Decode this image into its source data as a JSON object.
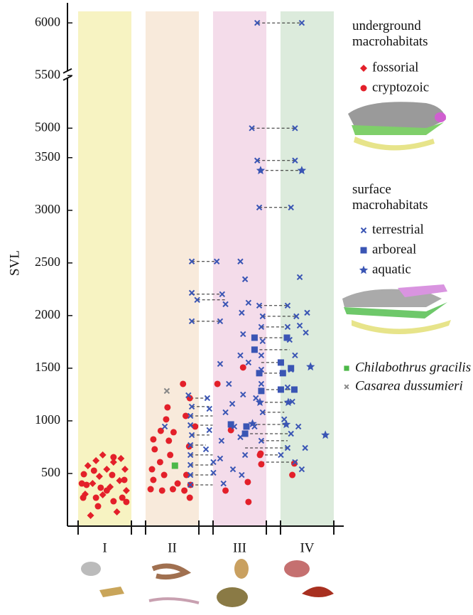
{
  "chart_data": {
    "type": "scatter",
    "y_label": "SVL",
    "categories": [
      "I",
      "II",
      "III",
      "IV"
    ],
    "band_colors": [
      "#f7f3c2",
      "#f8eadb",
      "#f4dcea",
      "#dcebdc"
    ],
    "xlim": [
      0,
      4
    ],
    "ylim": [
      0,
      6150
    ],
    "y_break": [
      3680,
      4900
    ],
    "yticks": [
      500,
      1000,
      1500,
      2000,
      2500,
      3000,
      3500,
      5000,
      5500,
      6000
    ],
    "legend_titles": [
      "underground macrohabitats",
      "surface macrohabitats"
    ],
    "series": [
      {
        "name": "fossorial",
        "color": "#e3202a",
        "marker": "diamond",
        "x": [
          0.29,
          0.68,
          0.47,
          0.21,
          0.82,
          0.58,
          0.32,
          0.72,
          0.42,
          0.53,
          0.8,
          0.25,
          0.63,
          0.37,
          0.74,
          0.47
        ],
        "values": [
          101,
          135,
          297,
          304,
          338,
          372,
          405,
          432,
          473,
          540,
          540,
          574,
          608,
          622,
          642,
          676
        ]
      },
      {
        "name": "cryptozoic",
        "color": "#e3202a",
        "marker": "circle",
        "x": [
          0.18,
          0.63,
          0.4,
          0.82,
          0.23,
          0.53,
          0.79,
          0.34,
          0.61,
          0.19,
          0.44,
          0.63,
          0.16,
          0.76,
          0.37,
          1.18,
          1.35,
          1.51,
          1.68,
          1.22,
          1.38,
          1.58,
          1.77,
          1.2,
          1.32,
          1.47,
          1.71,
          1.24,
          1.45,
          1.75,
          1.22,
          1.33,
          1.52,
          1.84,
          1.41,
          1.7,
          1.43,
          1.66,
          2.17,
          1.76,
          1.76,
          2.55,
          2.37,
          2.29,
          2.62,
          2.8,
          2.82,
          2.63,
          3.28,
          3.31,
          2.81
        ],
        "values": [
          270,
          236,
          189,
          230,
          392,
          338,
          439,
          527,
          486,
          493,
          365,
          655,
          405,
          270,
          270,
          351,
          338,
          351,
          338,
          439,
          486,
          405,
          392,
          540,
          608,
          676,
          486,
          730,
          811,
          757,
          824,
          905,
          892,
          946,
          1014,
          1047,
          1128,
          1351,
          1351,
          1216,
          270,
          1507,
          912,
          338,
          419,
          676,
          588,
          230,
          486,
          595,
          689
        ]
      },
      {
        "name": "terrestrial",
        "color": "#3a55b4",
        "marker": "x",
        "x": [
          1.79,
          2.16,
          1.79,
          1.79,
          2.21,
          1.87,
          2.24,
          2.29,
          1.39,
          1.74,
          1.79,
          1.77,
          1.77,
          1.79,
          1.77,
          1.77,
          1.77,
          1.77,
          1.77,
          2.02,
          2.05,
          2.05,
          2.0,
          2.11,
          2.11,
          2.51,
          2.58,
          2.53,
          2.63,
          2.55,
          2.21,
          2.34,
          2.51,
          2.63,
          2.39,
          2.55,
          2.29,
          2.42,
          2.23,
          2.51,
          2.21,
          2.4,
          2.58,
          2.26,
          2.53,
          2.72,
          2.74,
          2.82,
          2.84,
          2.82,
          2.79,
          2.84,
          2.82,
          2.82,
          2.84,
          2.82,
          2.76,
          3.42,
          2.68,
          3.32,
          2.76,
          3.32,
          2.79,
          3.26,
          3.21,
          3.34,
          3.21,
          3.24,
          3.32,
          3.26,
          3.21,
          3.28,
          3.16,
          3.26,
          3.21,
          3.32,
          3.42,
          3.47,
          3.39,
          3.5,
          3.48,
          3.39,
          3.37,
          3.11
        ],
        "values": [
          2514,
          2514,
          2216,
          1946,
          1946,
          2149,
          2203,
          2108,
          946,
          1243,
          1135,
          1047,
          959,
          865,
          770,
          676,
          581,
          486,
          392,
          1216,
          1115,
          912,
          730,
          608,
          507,
          2514,
          2345,
          2027,
          2122,
          1824,
          1541,
          1351,
          1622,
          1554,
          1162,
          1250,
          1081,
          946,
          811,
          845,
          642,
          540,
          676,
          405,
          486,
          946,
          1216,
          1351,
          1757,
          1892,
          2095,
          1993,
          1622,
          1486,
          1081,
          811,
          6000,
          6000,
          5000,
          5000,
          3473,
          3473,
          3027,
          3027,
          2095,
          1993,
          1892,
          1770,
          1622,
          1486,
          1318,
          1182,
          1014,
          878,
          743,
          608,
          540,
          743,
          2365,
          2027,
          1838,
          1905,
          946,
          676
        ]
      },
      {
        "name": "arboreal",
        "color": "#3a55b4",
        "marker": "square",
        "x": [
          2.72,
          3.2,
          2.72,
          3.11,
          3.26,
          2.79,
          3.14,
          2.82,
          3.11,
          3.31,
          2.37,
          2.6,
          2.58
        ],
        "values": [
          1790,
          1790,
          1676,
          1554,
          1500,
          1453,
          1453,
          1284,
          1297,
          1297,
          966,
          946,
          878
        ]
      },
      {
        "name": "aquatic",
        "color": "#3a55b4",
        "marker": "star",
        "x": [
          2.81,
          3.42,
          3.77,
          3.55,
          2.69,
          2.8,
          3.22,
          3.19
        ],
        "values": [
          3378,
          3378,
          865,
          1514,
          973,
          1176,
          1176,
          966
        ]
      },
      {
        "name": "Chilabothrus gracilis",
        "color": "#4cb848",
        "marker": "square",
        "x": [
          1.54
        ],
        "values": [
          574
        ]
      },
      {
        "name": "Casarea dussumieri",
        "color": "#888888",
        "marker": "x",
        "x": [
          1.42
        ],
        "values": [
          1284
        ]
      }
    ],
    "connectors": [
      {
        "x": [
          2.76,
          3.42
        ],
        "y": 6000
      },
      {
        "x": [
          2.68,
          3.32
        ],
        "y": 5000
      },
      {
        "x": [
          2.76,
          3.32
        ],
        "y": 3473
      },
      {
        "x": [
          2.81,
          3.42
        ],
        "y": 3378
      },
      {
        "x": [
          2.79,
          3.26
        ],
        "y": 3027
      },
      {
        "x": [
          1.79,
          2.16
        ],
        "y": 2514
      },
      {
        "x": [
          1.79,
          2.24
        ],
        "y": 2203
      },
      {
        "x": [
          1.87,
          2.29
        ],
        "y": 2149
      },
      {
        "x": [
          1.79,
          2.21
        ],
        "y": 1946
      },
      {
        "x": [
          2.79,
          3.21
        ],
        "y": 2095
      },
      {
        "x": [
          2.84,
          3.34
        ],
        "y": 1993
      },
      {
        "x": [
          2.82,
          3.21
        ],
        "y": 1892
      },
      {
        "x": [
          2.72,
          3.2
        ],
        "y": 1790
      },
      {
        "x": [
          2.72,
          3.24
        ],
        "y": 1676
      },
      {
        "x": [
          2.82,
          3.11
        ],
        "y": 1554
      },
      {
        "x": [
          2.79,
          3.14
        ],
        "y": 1453
      },
      {
        "x": [
          2.82,
          3.31
        ],
        "y": 1297
      },
      {
        "x": [
          2.8,
          3.22
        ],
        "y": 1176
      },
      {
        "x": [
          2.84,
          3.16
        ],
        "y": 1081
      },
      {
        "x": [
          2.69,
          3.19
        ],
        "y": 966
      },
      {
        "x": [
          2.58,
          3.26
        ],
        "y": 878
      },
      {
        "x": [
          2.82,
          3.21
        ],
        "y": 811
      },
      {
        "x": [
          2.58,
          3.21
        ],
        "y": 743
      },
      {
        "x": [
          2.8,
          3.11
        ],
        "y": 676
      },
      {
        "x": [
          2.82,
          3.32
        ],
        "y": 608
      },
      {
        "x": [
          1.77,
          2.02
        ],
        "y": 1216
      },
      {
        "x": [
          1.79,
          2.05
        ],
        "y": 1135
      },
      {
        "x": [
          1.77,
          2.1
        ],
        "y": 1047
      },
      {
        "x": [
          1.77,
          2.1
        ],
        "y": 959
      },
      {
        "x": [
          1.79,
          2.05
        ],
        "y": 865
      },
      {
        "x": [
          1.77,
          2.0
        ],
        "y": 770
      },
      {
        "x": [
          1.77,
          2.1
        ],
        "y": 676
      },
      {
        "x": [
          1.77,
          2.11
        ],
        "y": 581
      },
      {
        "x": [
          1.77,
          2.11
        ],
        "y": 486
      },
      {
        "x": [
          1.77,
          2.1
        ],
        "y": 392
      }
    ]
  }
}
